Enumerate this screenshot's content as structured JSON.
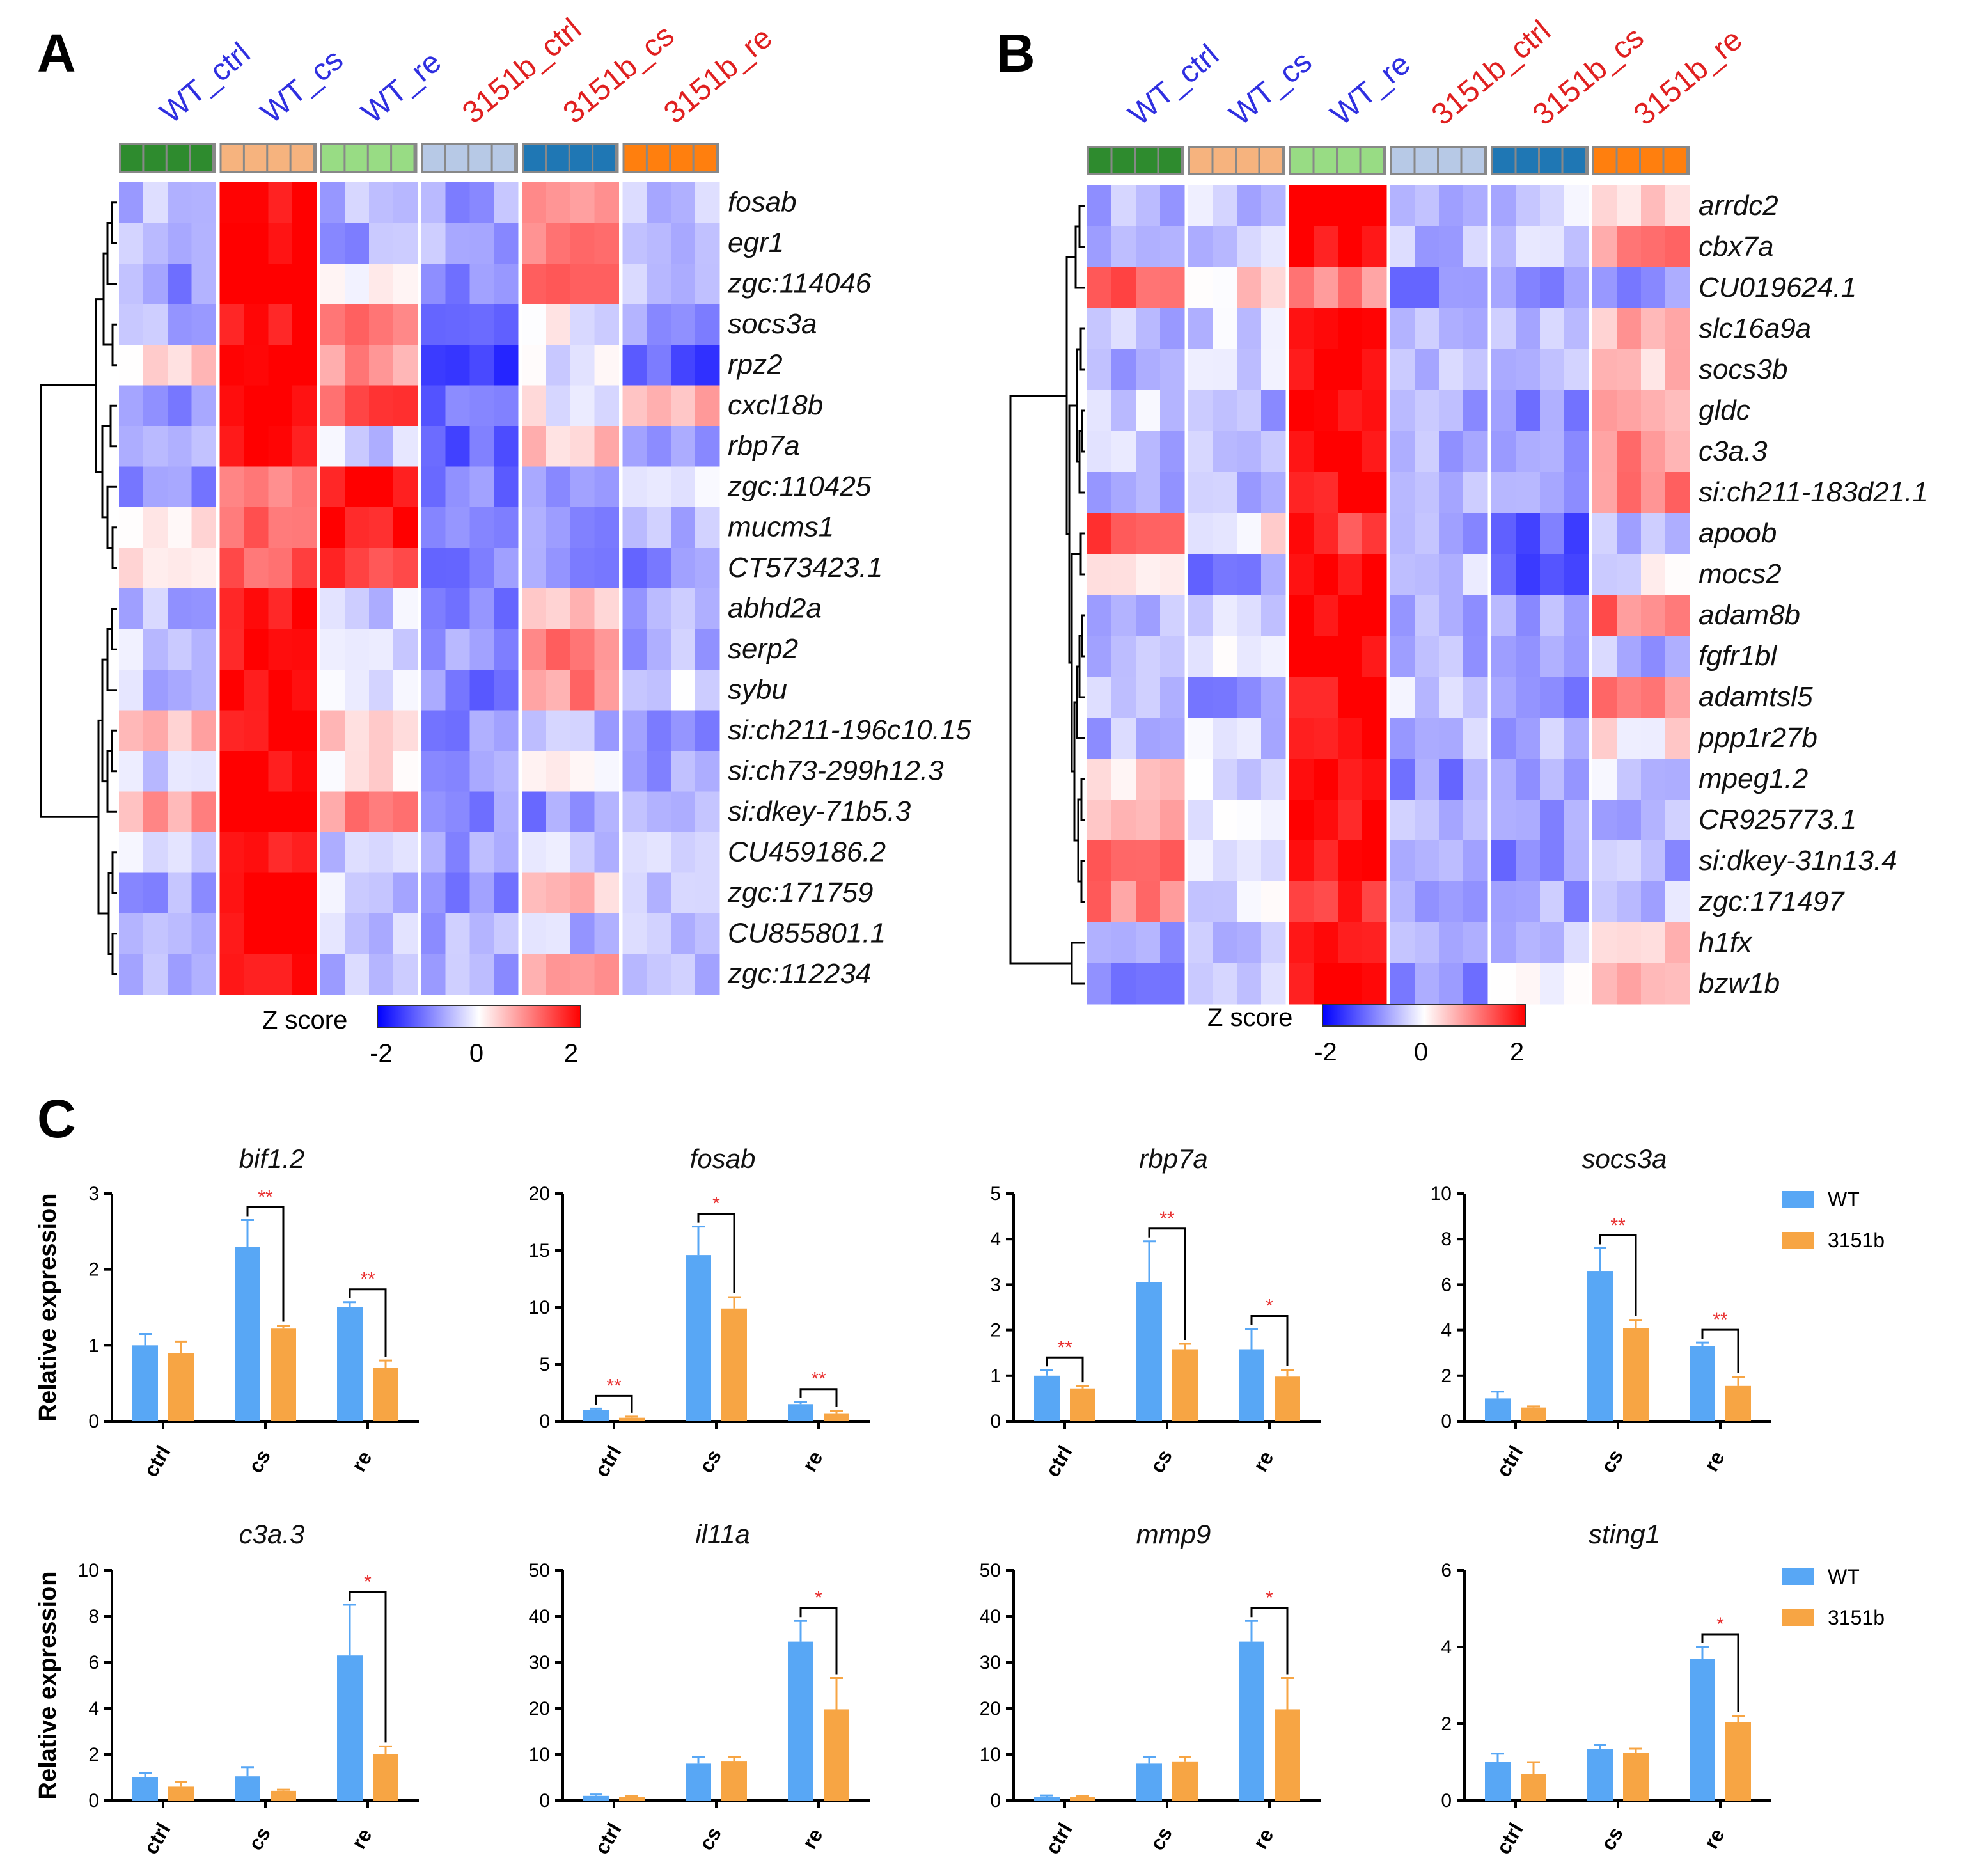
{
  "panels": {
    "a": "A",
    "b": "B",
    "c": "C"
  },
  "colors": {
    "wt_label": "#2f2fe0",
    "mut_label": "#e02020",
    "wt_bar": "#58a7f5",
    "mut_bar": "#f7a544",
    "sig": "#e83030",
    "group_colors": [
      "#2e8b2e",
      "#f6b37e",
      "#98dc84",
      "#b7c9e6",
      "#1f77b4",
      "#ff7f0e"
    ],
    "heat_low": "#0000ff",
    "heat_mid": "#ffffff",
    "heat_high": "#ff0000"
  },
  "heatmap_a": {
    "groups": [
      "WT_ctrl",
      "WT_cs",
      "WT_re",
      "3151b_ctrl",
      "3151b_cs",
      "3151b_re"
    ],
    "genes": [
      "fosab",
      "egr1",
      "zgc:114046",
      "socs3a",
      "rpz2",
      "cxcl18b",
      "rbp7a",
      "zgc:110425",
      "mucms1",
      "CT573423.1",
      "abhd2a",
      "serp2",
      "sybu",
      "si:ch211-196c10.15",
      "si:ch73-299h12.3",
      "si:dkey-71b5.3",
      "CU459186.2",
      "zgc:171759",
      "CU855801.1",
      "zgc:112234"
    ],
    "colorbar": {
      "label": "Z score",
      "ticks": [
        "-2",
        "0",
        "2"
      ]
    }
  },
  "heatmap_b": {
    "groups": [
      "WT_ctrl",
      "WT_cs",
      "WT_re",
      "3151b_ctrl",
      "3151b_cs",
      "3151b_re"
    ],
    "genes": [
      "arrdc2",
      "cbx7a",
      "CU019624.1",
      "slc16a9a",
      "socs3b",
      "gldc",
      "c3a.3",
      "si:ch211-183d21.1",
      "apoob",
      "mocs2",
      "adam8b",
      "fgfr1bl",
      "adamtsl5",
      "ppp1r27b",
      "mpeg1.2",
      "CR925773.1",
      "si:dkey-31n13.4",
      "zgc:171497",
      "h1fx",
      "bzw1b"
    ],
    "colorbar": {
      "label": "Z score",
      "ticks": [
        "-2",
        "0",
        "2"
      ]
    }
  },
  "chart_data": [
    {
      "type": "heatmap",
      "panel": "A",
      "rows": 20,
      "columns": [
        "WT_ctrl",
        "WT_cs",
        "WT_re",
        "3151b_ctrl",
        "3151b_cs",
        "3151b_re"
      ],
      "z_values": [
        [
          -0.6,
          2.0,
          -0.5,
          -0.7,
          0.9,
          -0.5
        ],
        [
          -0.5,
          2.0,
          -0.7,
          -0.7,
          1.0,
          -0.8
        ],
        [
          -0.8,
          2.0,
          -0.1,
          -0.9,
          1.0,
          -0.5
        ],
        [
          -0.7,
          2.0,
          1.2,
          -1.1,
          -0.1,
          -0.7
        ],
        [
          0.3,
          2.0,
          0.8,
          -1.5,
          -0.2,
          -1.3
        ],
        [
          -1.0,
          2.0,
          1.4,
          -1.2,
          0.0,
          0.6
        ],
        [
          -0.3,
          2.0,
          -0.3,
          -1.2,
          0.4,
          -0.6
        ],
        [
          -0.8,
          1.2,
          1.8,
          -1.0,
          -0.6,
          -0.1
        ],
        [
          0.1,
          1.3,
          1.8,
          -1.1,
          -0.8,
          -0.6
        ],
        [
          0.4,
          1.3,
          1.5,
          -0.9,
          -0.8,
          -0.9
        ],
        [
          -0.6,
          2.0,
          -0.3,
          -0.9,
          0.6,
          -0.7
        ],
        [
          -0.4,
          2.0,
          -0.4,
          -0.8,
          1.1,
          -0.6
        ],
        [
          -0.5,
          2.0,
          -0.3,
          -1.0,
          0.9,
          -0.3
        ],
        [
          0.5,
          2.0,
          0.4,
          -0.9,
          -0.5,
          -0.8
        ],
        [
          -0.3,
          2.0,
          0.1,
          -0.8,
          -0.1,
          -0.7
        ],
        [
          0.8,
          2.0,
          1.0,
          -0.9,
          -0.9,
          -0.8
        ],
        [
          -0.4,
          2.0,
          -0.3,
          -0.7,
          -0.4,
          -0.5
        ],
        [
          -0.7,
          2.0,
          -0.4,
          -0.8,
          0.5,
          -0.3
        ],
        [
          -0.6,
          2.0,
          -0.4,
          -0.6,
          -0.5,
          -0.4
        ],
        [
          -0.7,
          2.0,
          -0.5,
          -0.7,
          0.8,
          -0.5
        ]
      ]
    },
    {
      "type": "heatmap",
      "panel": "B",
      "rows": 20,
      "columns": [
        "WT_ctrl",
        "WT_cs",
        "WT_re",
        "3151b_ctrl",
        "3151b_cs",
        "3151b_re"
      ],
      "z_values": [
        [
          -0.6,
          -0.4,
          2.0,
          -0.5,
          -0.4,
          0.3
        ],
        [
          -0.5,
          -0.5,
          2.0,
          -0.6,
          -0.5,
          0.9
        ],
        [
          1.2,
          0.3,
          1.0,
          -0.9,
          -0.8,
          -0.9
        ],
        [
          -0.5,
          -0.3,
          2.0,
          -0.6,
          -0.5,
          0.6
        ],
        [
          -0.6,
          -0.3,
          2.0,
          -0.5,
          -0.6,
          0.5
        ],
        [
          -0.4,
          -0.6,
          2.0,
          -0.6,
          -0.8,
          0.8
        ],
        [
          -0.5,
          -0.4,
          2.0,
          -0.6,
          -0.7,
          0.9
        ],
        [
          -0.7,
          -0.6,
          2.0,
          -0.6,
          -0.6,
          1.0
        ],
        [
          1.3,
          0.1,
          1.6,
          -0.7,
          -1.2,
          -0.6
        ],
        [
          0.4,
          -0.9,
          1.8,
          -0.4,
          -1.4,
          -0.1
        ],
        [
          -0.5,
          -0.5,
          2.0,
          -0.6,
          -0.7,
          1.1
        ],
        [
          -0.6,
          -0.3,
          2.0,
          -0.6,
          -0.6,
          -0.6
        ],
        [
          -0.4,
          -0.9,
          2.0,
          -0.3,
          -0.9,
          1.0
        ],
        [
          -0.6,
          -0.4,
          2.0,
          -0.6,
          -0.6,
          0.1
        ],
        [
          0.4,
          -0.2,
          2.0,
          -0.9,
          -0.8,
          -0.3
        ],
        [
          0.7,
          -0.3,
          2.0,
          -0.7,
          -0.8,
          -0.6
        ],
        [
          1.3,
          -0.2,
          1.8,
          -0.7,
          -0.9,
          -0.6
        ],
        [
          1.0,
          -0.2,
          1.7,
          -0.6,
          -0.7,
          -0.5
        ],
        [
          -0.6,
          -0.6,
          2.0,
          -0.5,
          -0.4,
          0.6
        ],
        [
          -1.0,
          -0.4,
          2.0,
          -0.9,
          0.2,
          0.6
        ]
      ]
    },
    {
      "type": "bar",
      "panel": "C",
      "title": "bif1.2",
      "ylabel": "Relative expression",
      "categories": [
        "ctrl",
        "cs",
        "re"
      ],
      "ylim": [
        0,
        3
      ],
      "yticks": [
        "0",
        "1",
        "2",
        "3"
      ],
      "series": [
        {
          "name": "WT",
          "values": [
            1.0,
            2.3,
            1.5
          ],
          "errors": [
            0.15,
            0.35,
            0.07
          ]
        },
        {
          "name": "3151b",
          "values": [
            0.9,
            1.22,
            0.7
          ],
          "errors": [
            0.15,
            0.04,
            0.1
          ]
        }
      ],
      "significance": [
        {
          "category": "cs",
          "label": "**"
        },
        {
          "category": "re",
          "label": "**"
        }
      ]
    },
    {
      "type": "bar",
      "panel": "C",
      "title": "fosab",
      "ylabel": "",
      "categories": [
        "ctrl",
        "cs",
        "re"
      ],
      "ylim": [
        0,
        20
      ],
      "yticks": [
        "0",
        "5",
        "10",
        "15",
        "20"
      ],
      "series": [
        {
          "name": "WT",
          "values": [
            1.0,
            14.6,
            1.5
          ],
          "errors": [
            0.1,
            2.5,
            0.2
          ]
        },
        {
          "name": "3151b",
          "values": [
            0.3,
            9.9,
            0.7
          ],
          "errors": [
            0.1,
            1.0,
            0.2
          ]
        }
      ],
      "significance": [
        {
          "category": "ctrl",
          "label": "**"
        },
        {
          "category": "cs",
          "label": "*"
        },
        {
          "category": "re",
          "label": "**"
        }
      ]
    },
    {
      "type": "bar",
      "panel": "C",
      "title": "rbp7a",
      "ylabel": "",
      "categories": [
        "ctrl",
        "cs",
        "re"
      ],
      "ylim": [
        0,
        5
      ],
      "yticks": [
        "0",
        "1",
        "2",
        "3",
        "4",
        "5"
      ],
      "series": [
        {
          "name": "WT",
          "values": [
            1.0,
            3.05,
            1.58
          ],
          "errors": [
            0.12,
            0.9,
            0.45
          ]
        },
        {
          "name": "3151b",
          "values": [
            0.72,
            1.58,
            0.98
          ],
          "errors": [
            0.05,
            0.12,
            0.15
          ]
        }
      ],
      "significance": [
        {
          "category": "ctrl",
          "label": "**"
        },
        {
          "category": "cs",
          "label": "**"
        },
        {
          "category": "re",
          "label": "*"
        }
      ]
    },
    {
      "type": "bar",
      "panel": "C",
      "title": "socs3a",
      "ylabel": "",
      "categories": [
        "ctrl",
        "cs",
        "re"
      ],
      "ylim": [
        0,
        10
      ],
      "yticks": [
        "0",
        "2",
        "4",
        "6",
        "8",
        "10"
      ],
      "series": [
        {
          "name": "WT",
          "values": [
            1.0,
            6.6,
            3.3
          ],
          "errors": [
            0.3,
            1.0,
            0.15
          ]
        },
        {
          "name": "3151b",
          "values": [
            0.6,
            4.1,
            1.55
          ],
          "errors": [
            0.05,
            0.35,
            0.4
          ]
        }
      ],
      "significance": [
        {
          "category": "cs",
          "label": "**"
        },
        {
          "category": "re",
          "label": "**"
        }
      ]
    },
    {
      "type": "bar",
      "panel": "C",
      "title": "c3a.3",
      "ylabel": "Relative expression",
      "categories": [
        "ctrl",
        "cs",
        "re"
      ],
      "ylim": [
        0,
        10
      ],
      "yticks": [
        "0",
        "2",
        "4",
        "6",
        "8",
        "10"
      ],
      "series": [
        {
          "name": "WT",
          "values": [
            1.0,
            1.05,
            6.3
          ],
          "errors": [
            0.2,
            0.4,
            2.2
          ]
        },
        {
          "name": "3151b",
          "values": [
            0.6,
            0.42,
            2.0
          ],
          "errors": [
            0.2,
            0.05,
            0.35
          ]
        }
      ],
      "significance": [
        {
          "category": "re",
          "label": "*"
        }
      ]
    },
    {
      "type": "bar",
      "panel": "C",
      "title": "il11a",
      "ylabel": "",
      "categories": [
        "ctrl",
        "cs",
        "re"
      ],
      "ylim": [
        0,
        50
      ],
      "yticks": [
        "0",
        "10",
        "20",
        "30",
        "40",
        "50"
      ],
      "series": [
        {
          "name": "WT",
          "values": [
            1.0,
            8.0,
            34.5
          ],
          "errors": [
            0.3,
            1.5,
            4.5
          ]
        },
        {
          "name": "3151b",
          "values": [
            0.8,
            8.6,
            19.8
          ],
          "errors": [
            0.2,
            0.9,
            6.8
          ]
        }
      ],
      "significance": [
        {
          "category": "re",
          "label": "*"
        }
      ]
    },
    {
      "type": "bar",
      "panel": "C",
      "title": "mmp9",
      "ylabel": "",
      "categories": [
        "ctrl",
        "cs",
        "re"
      ],
      "ylim": [
        0,
        50
      ],
      "yticks": [
        "0",
        "10",
        "20",
        "30",
        "40",
        "50"
      ],
      "series": [
        {
          "name": "WT",
          "values": [
            0.8,
            8.0,
            34.5
          ],
          "errors": [
            0.3,
            1.5,
            4.5
          ]
        },
        {
          "name": "3151b",
          "values": [
            0.7,
            8.5,
            19.8
          ],
          "errors": [
            0.2,
            1.0,
            6.8
          ]
        }
      ],
      "significance": [
        {
          "category": "re",
          "label": "*"
        }
      ]
    },
    {
      "type": "bar",
      "panel": "C",
      "title": "sting1",
      "ylabel": "",
      "categories": [
        "ctrl",
        "cs",
        "re"
      ],
      "ylim": [
        0,
        6
      ],
      "yticks": [
        "0",
        "2",
        "4",
        "6"
      ],
      "series": [
        {
          "name": "WT",
          "values": [
            1.0,
            1.35,
            3.7
          ],
          "errors": [
            0.22,
            0.1,
            0.3
          ]
        },
        {
          "name": "3151b",
          "values": [
            0.7,
            1.25,
            2.05
          ],
          "errors": [
            0.3,
            0.1,
            0.15
          ]
        }
      ],
      "significance": [
        {
          "category": "re",
          "label": "*"
        }
      ]
    }
  ],
  "legend": {
    "entries": [
      "WT",
      "3151b"
    ]
  }
}
